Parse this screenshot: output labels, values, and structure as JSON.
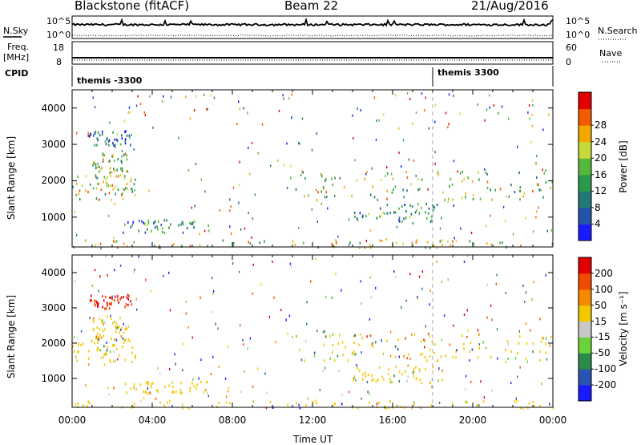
{
  "header": {
    "station": "Blackstone (fitACF)",
    "beam": "Beam 22",
    "date": "21/Aug/2016"
  },
  "panels": {
    "nsky_label": "N.Sky",
    "nsearch_label": "N.Search",
    "freq_label": "Freq.",
    "freq_unit": "[MHz]",
    "nave_label": "Nave",
    "cpid_label": "CPID",
    "noise_left_ticks": [
      "10^5",
      "10^0"
    ],
    "noise_right_ticks": [
      "10^5",
      "10^0"
    ],
    "freq_ticks": [
      "18",
      "8"
    ],
    "nave_ticks": [
      "60",
      "0"
    ],
    "cpid_segments": [
      {
        "start_hour": 0,
        "label": "themis -3300"
      },
      {
        "start_hour": 18,
        "label": "themis 3300"
      }
    ]
  },
  "chart_data": [
    {
      "type": "heatmap",
      "name": "power",
      "ylabel": "Slant Range [km]",
      "xlim": [
        0,
        24
      ],
      "ylim": [
        180,
        4500
      ],
      "yticks": [
        "1000",
        "2000",
        "3000",
        "4000"
      ],
      "colorbar": {
        "label": "Power [dB]",
        "ticks": [
          "4",
          "8",
          "12",
          "16",
          "20",
          "24",
          "28"
        ],
        "colors": [
          "#1a1aff",
          "#2255aa",
          "#227777",
          "#2a9a4a",
          "#55b83a",
          "#c7d83a",
          "#f4a800",
          "#f05a00",
          "#e00000"
        ]
      },
      "echo_bands": [
        {
          "t": [
            0.0,
            3.2
          ],
          "r": [
            1500,
            2200
          ],
          "level": 0.6
        },
        {
          "t": [
            1.0,
            2.8
          ],
          "r": [
            2100,
            2800
          ],
          "level": 0.5
        },
        {
          "t": [
            0.8,
            3.0
          ],
          "r": [
            3000,
            3400
          ],
          "level": 0.2
        },
        {
          "t": [
            2.5,
            6.8
          ],
          "r": [
            600,
            950
          ],
          "level": 0.3
        },
        {
          "t": [
            10.8,
            24.0
          ],
          "r": [
            1500,
            2300
          ],
          "level": 0.55
        },
        {
          "t": [
            14.0,
            18.5
          ],
          "r": [
            900,
            1400
          ],
          "level": 0.35
        },
        {
          "t": [
            0.0,
            24.0
          ],
          "r": [
            180,
            400
          ],
          "level": 0.6
        }
      ]
    },
    {
      "type": "heatmap",
      "name": "velocity",
      "ylabel": "Slant Range [km]",
      "xlabel": "Time UT",
      "xlim": [
        0,
        24
      ],
      "ylim": [
        180,
        4500
      ],
      "yticks": [
        "1000",
        "2000",
        "3000",
        "4000"
      ],
      "xticks": [
        "00:00",
        "04:00",
        "08:00",
        "12:00",
        "16:00",
        "20:00",
        "00:00"
      ],
      "colorbar": {
        "label": "Velocity [m s⁻¹]",
        "ticks": [
          "200",
          "100",
          "50",
          "15",
          "-15",
          "-50",
          "-100",
          "-200"
        ],
        "colors": [
          "#1a1aff",
          "#2a52b0",
          "#2a8a4a",
          "#6ad23a",
          "#c8c8c8",
          "#f4c800",
          "#f58a00",
          "#f04a00",
          "#e00000"
        ]
      },
      "echo_bands": [
        {
          "t": [
            0.0,
            3.2
          ],
          "r": [
            1500,
            2200
          ],
          "level": 0.5
        },
        {
          "t": [
            1.0,
            2.8
          ],
          "r": [
            2100,
            2800
          ],
          "level": 0.5
        },
        {
          "t": [
            0.8,
            3.0
          ],
          "r": [
            3000,
            3400
          ],
          "level": 0.9
        },
        {
          "t": [
            2.5,
            6.8
          ],
          "r": [
            600,
            950
          ],
          "level": 0.45
        },
        {
          "t": [
            10.8,
            24.0
          ],
          "r": [
            1500,
            2300
          ],
          "level": 0.5
        },
        {
          "t": [
            14.0,
            18.5
          ],
          "r": [
            900,
            1400
          ],
          "level": 0.5
        },
        {
          "t": [
            0.0,
            24.0
          ],
          "r": [
            180,
            400
          ],
          "level": 0.3
        }
      ]
    }
  ]
}
